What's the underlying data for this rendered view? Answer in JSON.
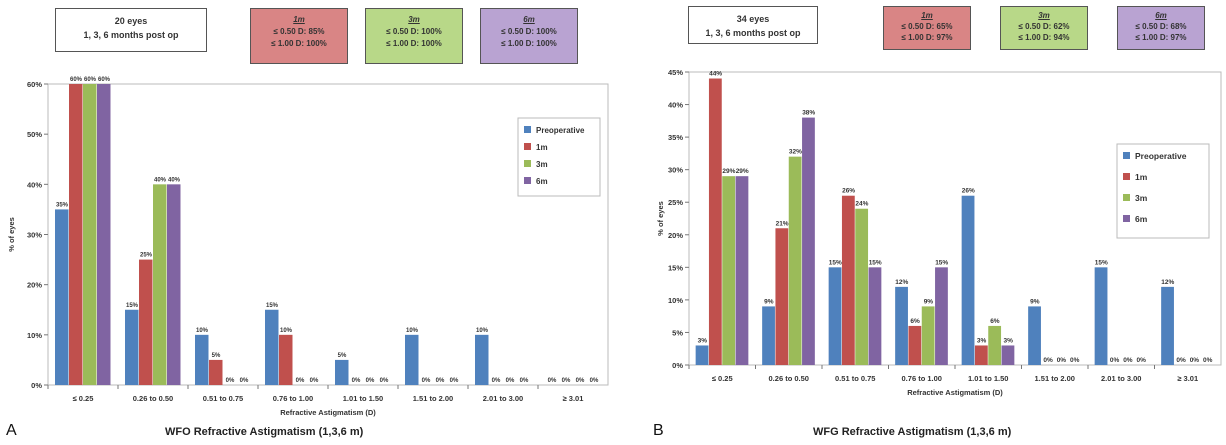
{
  "panel_a": {
    "letter": "A",
    "caption": "WFO Refractive Astigmatism (1,3,6 m)",
    "info": {
      "line1": "20 eyes",
      "line2": "1, 3, 6 months post op"
    },
    "boxes": [
      {
        "title": "1m",
        "line1": "≤ 0.50 D:  85%",
        "line2": "≤ 1.00 D:  100%",
        "color": "#d98585"
      },
      {
        "title": "3m",
        "line1": "≤ 0.50 D:  100%",
        "line2": "≤ 1.00 D:  100%",
        "color": "#b8d888"
      },
      {
        "title": "6m",
        "line1": "≤ 0.50 D:  100%",
        "line2": "≤ 1.00 D:  100%",
        "color": "#b9a3d2"
      }
    ]
  },
  "panel_b": {
    "letter": "B",
    "caption": "WFG Refractive Astigmatism (1,3,6 m)",
    "info": {
      "line1": "34 eyes",
      "line2": "1, 3, 6 months post op"
    },
    "boxes": [
      {
        "title": "1m",
        "line1": "≤ 0.50 D:  65%",
        "line2": "≤ 1.00 D:  97%",
        "color": "#d98585"
      },
      {
        "title": "3m",
        "line1": "≤ 0.50 D:  62%",
        "line2": "≤ 1.00 D:  94%",
        "color": "#b8d888"
      },
      {
        "title": "6m",
        "line1": "≤ 0.50 D:  68%",
        "line2": "≤ 1.00 D:  97%",
        "color": "#b9a3d2"
      }
    ]
  },
  "chart_data": [
    {
      "type": "bar",
      "title": "WFO Refractive Astigmatism (1,3,6 m)",
      "xlabel": "Refractive Astigmatism (D)",
      "ylabel": "% of eyes",
      "ylim": [
        0,
        60
      ],
      "yticks": [
        0,
        10,
        20,
        30,
        40,
        50,
        60
      ],
      "ytick_suffix": "%",
      "grid": false,
      "legend_position": "right",
      "categories": [
        "≤ 0.25",
        "0.26 to 0.50",
        "0.51 to 0.75",
        "0.76 to 1.00",
        "1.01 to 1.50",
        "1.51 to 2.00",
        "2.01 to 3.00",
        "≥ 3.01"
      ],
      "series": [
        {
          "name": "Preoperative",
          "color": "#4f81bd",
          "values": [
            35,
            15,
            10,
            15,
            5,
            10,
            10,
            0
          ]
        },
        {
          "name": "1m",
          "color": "#c0504d",
          "values": [
            60,
            25,
            5,
            10,
            0,
            0,
            0,
            0
          ]
        },
        {
          "name": "3m",
          "color": "#9bbb59",
          "values": [
            60,
            40,
            0,
            0,
            0,
            0,
            0,
            0
          ]
        },
        {
          "name": "6m",
          "color": "#8064a2",
          "values": [
            60,
            40,
            0,
            0,
            0,
            0,
            0,
            0
          ]
        }
      ]
    },
    {
      "type": "bar",
      "title": "WFG Refractive Astigmatism (1,3,6 m)",
      "xlabel": "Refractive Astigmatism (D)",
      "ylabel": "% of eyes",
      "ylim": [
        0,
        45
      ],
      "yticks": [
        0,
        5,
        10,
        15,
        20,
        25,
        30,
        35,
        40,
        45
      ],
      "ytick_suffix": "%",
      "grid": false,
      "legend_position": "right",
      "categories": [
        "≤ 0.25",
        "0.26 to 0.50",
        "0.51 to 0.75",
        "0.76 to 1.00",
        "1.01 to 1.50",
        "1.51 to 2.00",
        "2.01 to 3.00",
        "≥ 3.01"
      ],
      "series": [
        {
          "name": "Preoperative",
          "color": "#4f81bd",
          "values": [
            3,
            9,
            15,
            12,
            26,
            9,
            15,
            12
          ]
        },
        {
          "name": "1m",
          "color": "#c0504d",
          "values": [
            44,
            21,
            26,
            6,
            3,
            0,
            0,
            0
          ]
        },
        {
          "name": "3m",
          "color": "#9bbb59",
          "values": [
            29,
            32,
            24,
            9,
            6,
            0,
            0,
            0
          ]
        },
        {
          "name": "6m",
          "color": "#8064a2",
          "values": [
            29,
            38,
            15,
            15,
            3,
            0,
            0,
            0
          ]
        }
      ]
    }
  ]
}
